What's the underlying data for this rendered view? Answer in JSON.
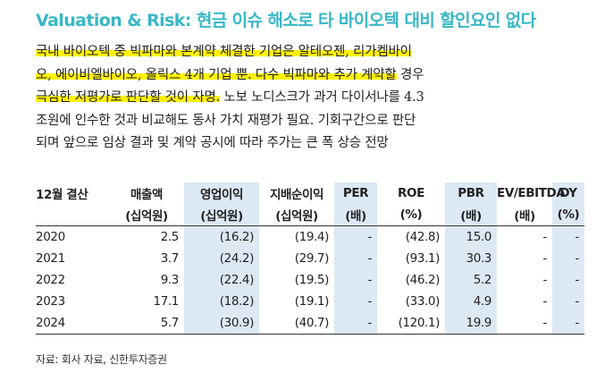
{
  "title": "Valuation & Risk: 현금 이슈 해소로 타 바이오텍 대비 할인요인 없다",
  "paragraph": {
    "line1": "국내 바이오텍 중 빅파마와 본계약 체결한 기업은 알테오젠, 리가켐바이",
    "line2": "오, 에이비엘바이오, 올릭스 4개 기업 뿐. 다수 빅파마와 추가 계약할",
    "line2_rest": " 경우",
    "line3_hl": "극심한 저평가로 판단할 것이 자명.",
    "line3_rest": " 노보 노디스크가 과거 다이서나를 4.3",
    "line4": "조원에 인수한 것과 비교해도 동사 가치 재평가 필요. 기회구간으로 판단",
    "line5": "되며 앞으로 임상 결과 및 계약 공시에 따라 주가는 큰 폭 상승 전망"
  },
  "table": {
    "header1": [
      "12월 결산",
      "매출액",
      "영업이익",
      "지배순이익",
      "PER",
      "ROE",
      "PBR",
      "EV/EBITDA",
      "DY"
    ],
    "header2": [
      "",
      "(십억원)",
      "(십억원)",
      "(십억원)",
      "(배)",
      "(%)",
      "(배)",
      "(배)",
      "(%)"
    ],
    "rows": [
      [
        "2020",
        "2.5",
        "(16.2)",
        "(19.4)",
        "-",
        "(42.8)",
        "15.0",
        "-",
        "-"
      ],
      [
        "2021",
        "3.7",
        "(24.2)",
        "(29.7)",
        "-",
        "(93.1)",
        "30.3",
        "-",
        "-"
      ],
      [
        "2022",
        "9.3",
        "(22.4)",
        "(19.5)",
        "-",
        "(46.2)",
        "5.2",
        "-",
        "-"
      ],
      [
        "2023",
        "17.1",
        "(18.2)",
        "(19.1)",
        "-",
        "(33.0)",
        "4.9",
        "-",
        "-"
      ],
      [
        "2024",
        "5.7",
        "(30.9)",
        "(40.7)",
        "-",
        "(120.1)",
        "19.9",
        "-",
        "-"
      ]
    ]
  },
  "source": "자료: 회사 자료, 신한투자증권",
  "colors": {
    "title": "#38b7c7",
    "highlight": "#fff200",
    "shaded_column": "#dde8f5"
  }
}
